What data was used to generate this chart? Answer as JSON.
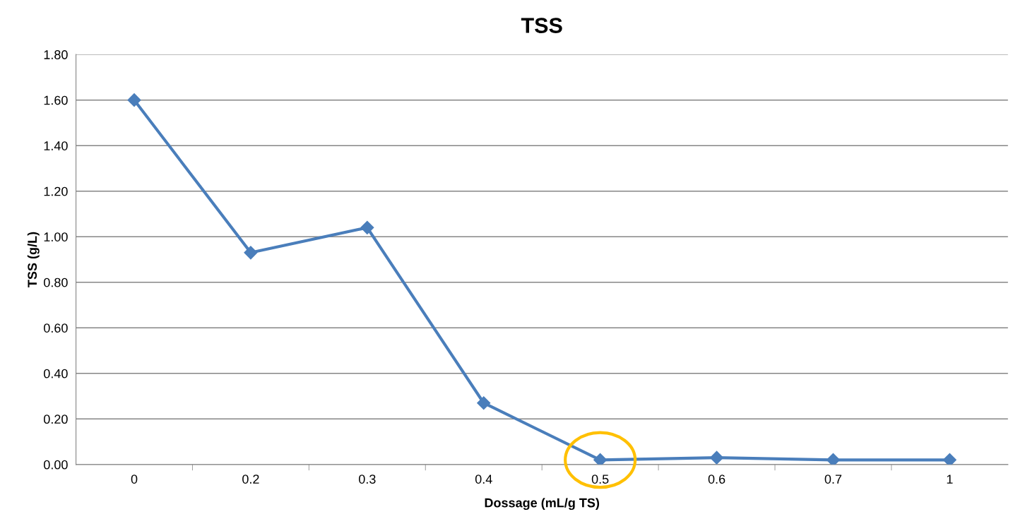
{
  "chart_data": {
    "type": "line",
    "title": "TSS",
    "xlabel": "Dossage (mL/g TS)",
    "ylabel": "TSS (g/L)",
    "categories": [
      "0",
      "0.2",
      "0.3",
      "0.4",
      "0.5",
      "0.6",
      "0.7",
      "1"
    ],
    "series": [
      {
        "color": "#4a7ebb",
        "values": [
          1.6,
          0.93,
          1.04,
          0.27,
          0.02,
          0.03,
          0.02,
          0.02
        ]
      }
    ],
    "ylim": [
      0,
      1.8
    ],
    "yticks": [
      {
        "value": 0,
        "label": "0.00"
      },
      {
        "value": 0.2,
        "label": "0.20"
      },
      {
        "value": 0.4,
        "label": "0.40"
      },
      {
        "value": 0.6,
        "label": "0.60"
      },
      {
        "value": 0.8,
        "label": "0.80"
      },
      {
        "value": 1.0,
        "label": "1.00"
      },
      {
        "value": 1.2,
        "label": "1.20"
      },
      {
        "value": 1.4,
        "label": "1.40"
      },
      {
        "value": 1.6,
        "label": "1.60"
      },
      {
        "value": 1.8,
        "label": "1.80"
      }
    ],
    "grid": "y",
    "marker": "diamond",
    "line_style": "solid"
  }
}
